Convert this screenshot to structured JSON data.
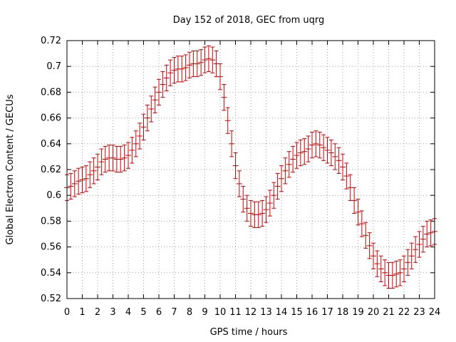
{
  "chart_data": {
    "type": "scatter",
    "title": "Day 152 of 2018, GEC from uqrg",
    "xlabel": "GPS time / hours",
    "ylabel": "Global Electron Content / GECUs",
    "xlim": [
      0,
      24
    ],
    "ylim": [
      0.52,
      0.72
    ],
    "xticks": [
      "0",
      "1",
      "2",
      "3",
      "4",
      "5",
      "6",
      "7",
      "8",
      "9",
      "10",
      "11",
      "12",
      "13",
      "14",
      "15",
      "16",
      "17",
      "18",
      "19",
      "20",
      "21",
      "22",
      "23",
      "24"
    ],
    "yticks": [
      "0.52",
      "0.54",
      "0.56",
      "0.58",
      "0.6",
      "0.62",
      "0.64",
      "0.66",
      "0.68",
      "0.7",
      "0.72"
    ],
    "grid": true,
    "legend": "none",
    "series": [
      {
        "color": "#cc0000",
        "x": [
          0,
          0.25,
          0.5,
          0.75,
          1,
          1.25,
          1.5,
          1.75,
          2,
          2.25,
          2.5,
          2.75,
          3,
          3.25,
          3.5,
          3.75,
          4,
          4.25,
          4.5,
          4.75,
          5,
          5.25,
          5.5,
          5.75,
          6,
          6.25,
          6.5,
          6.75,
          7,
          7.25,
          7.5,
          7.75,
          8,
          8.25,
          8.5,
          8.75,
          9,
          9.25,
          9.5,
          9.75,
          10,
          10.25,
          10.5,
          10.75,
          11,
          11.25,
          11.5,
          11.75,
          12,
          12.25,
          12.5,
          12.75,
          13,
          13.25,
          13.5,
          13.75,
          14,
          14.25,
          14.5,
          14.75,
          15,
          15.25,
          15.5,
          15.75,
          16,
          16.25,
          16.5,
          16.75,
          17,
          17.25,
          17.5,
          17.75,
          18,
          18.25,
          18.5,
          18.75,
          19,
          19.25,
          19.5,
          19.75,
          20,
          20.25,
          20.5,
          20.75,
          21,
          21.25,
          21.5,
          21.75,
          22,
          22.25,
          22.5,
          22.75,
          23,
          23.25,
          23.5,
          23.75,
          24
        ],
        "y": [
          0.606,
          0.607,
          0.609,
          0.611,
          0.612,
          0.613,
          0.616,
          0.619,
          0.622,
          0.626,
          0.628,
          0.629,
          0.629,
          0.628,
          0.628,
          0.629,
          0.631,
          0.635,
          0.64,
          0.646,
          0.653,
          0.66,
          0.667,
          0.674,
          0.68,
          0.686,
          0.691,
          0.695,
          0.697,
          0.698,
          0.698,
          0.699,
          0.701,
          0.702,
          0.702,
          0.703,
          0.705,
          0.706,
          0.705,
          0.702,
          0.692,
          0.676,
          0.658,
          0.64,
          0.623,
          0.609,
          0.597,
          0.59,
          0.586,
          0.585,
          0.585,
          0.586,
          0.589,
          0.594,
          0.6,
          0.607,
          0.613,
          0.619,
          0.624,
          0.628,
          0.631,
          0.633,
          0.634,
          0.636,
          0.639,
          0.64,
          0.639,
          0.637,
          0.635,
          0.633,
          0.63,
          0.627,
          0.622,
          0.615,
          0.606,
          0.596,
          0.587,
          0.578,
          0.569,
          0.561,
          0.553,
          0.547,
          0.543,
          0.54,
          0.538,
          0.538,
          0.539,
          0.54,
          0.543,
          0.548,
          0.553,
          0.558,
          0.562,
          0.566,
          0.57,
          0.571,
          0.572
        ],
        "error": 0.01
      }
    ]
  }
}
